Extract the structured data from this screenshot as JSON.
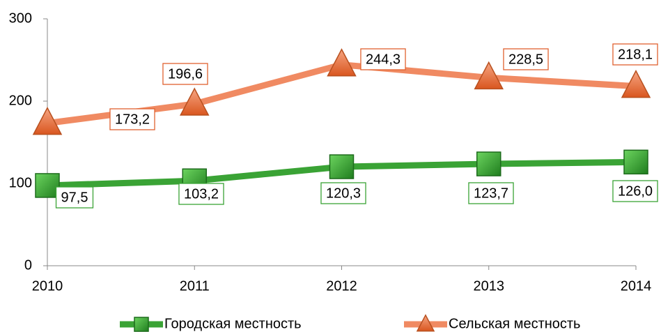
{
  "chart_data": {
    "type": "line",
    "categories": [
      "2010",
      "2011",
      "2012",
      "2013",
      "2014"
    ],
    "series": [
      {
        "name": "Городская местность",
        "color": "#3aa335",
        "marker": "square",
        "values": [
          97.5,
          103.2,
          120.3,
          123.7,
          126.0
        ],
        "value_labels": [
          "97,5",
          "103,2",
          "120,3",
          "123,7",
          "126,0"
        ]
      },
      {
        "name": "Сельская местность",
        "color": "#f08a62",
        "marker": "triangle",
        "values": [
          173.2,
          196.6,
          244.3,
          228.5,
          218.1
        ],
        "value_labels": [
          "173,2",
          "196,6",
          "244,3",
          "228,5",
          "218,1"
        ]
      }
    ],
    "ylim": [
      0,
      300
    ],
    "yticks": [
      0,
      100,
      200,
      300
    ],
    "grid": false,
    "legend": "bottom"
  }
}
